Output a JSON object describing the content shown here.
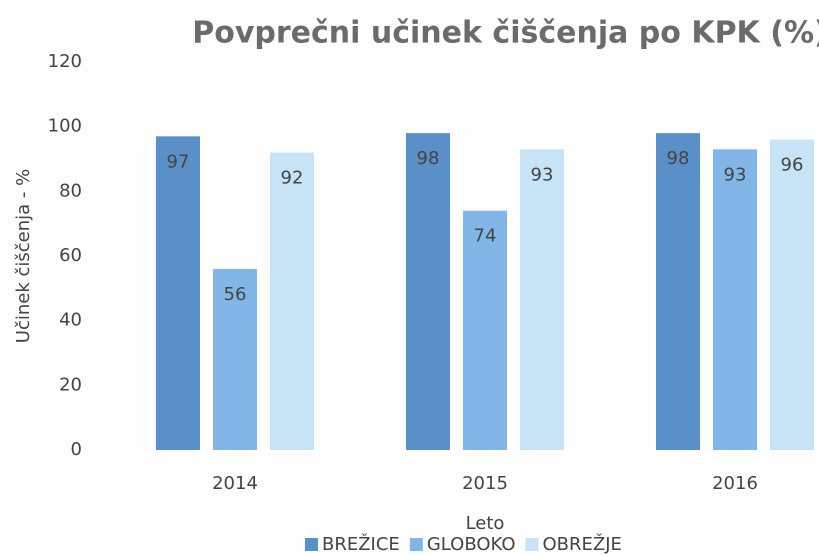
{
  "chart_data": {
    "type": "bar",
    "title": "Povprečni učinek čiščenja po KPK (%)",
    "x_label": "Leto",
    "y_label": "Učinek čiščenja - %",
    "categories": [
      "2014",
      "2015",
      "2016"
    ],
    "series": [
      {
        "name": "BREŽICE",
        "color": "#5b8fc7",
        "values": [
          97,
          98,
          98
        ]
      },
      {
        "name": "GLOBOKO",
        "color": "#82b6e6",
        "values": [
          56,
          74,
          93
        ]
      },
      {
        "name": "OBREŽJE",
        "color": "#c6e4f6",
        "values": [
          92,
          93,
          96
        ]
      }
    ],
    "ylim": [
      0,
      120
    ],
    "yticks": [
      0,
      20,
      40,
      60,
      80,
      100,
      120
    ],
    "grid": false,
    "legend": "bottom"
  }
}
